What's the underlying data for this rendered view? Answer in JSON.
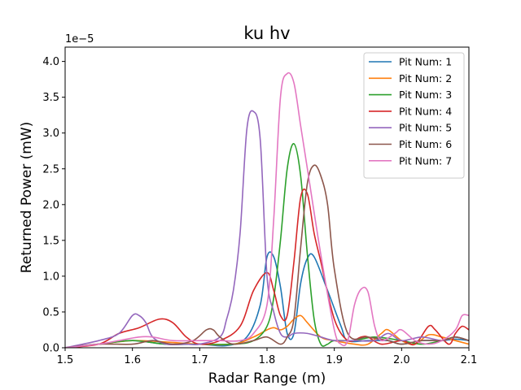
{
  "chart_data": {
    "type": "line",
    "title": "ku hv",
    "xlabel": "Radar Range (m)",
    "ylabel": "Returned Power (mW)",
    "offset_text": "1e−5",
    "xlim": [
      1.5,
      2.1
    ],
    "ylim": [
      0.0,
      4.2
    ],
    "xticks": [
      "1.5",
      "1.6",
      "1.7",
      "1.8",
      "1.9",
      "2.0",
      "2.1"
    ],
    "yticks": [
      "0.0",
      "0.5",
      "1.0",
      "1.5",
      "2.0",
      "2.5",
      "3.0",
      "3.5",
      "4.0"
    ],
    "grid": false,
    "legend_position": "top-right",
    "series": [
      {
        "name": "Pit Num: 1",
        "color": "#1f77b4",
        "x": [
          1.5,
          1.55,
          1.6,
          1.65,
          1.7,
          1.74,
          1.77,
          1.79,
          1.8,
          1.81,
          1.82,
          1.83,
          1.84,
          1.85,
          1.86,
          1.87,
          1.89,
          1.91,
          1.92,
          1.95,
          1.98,
          2.0,
          2.03,
          2.06,
          2.08,
          2.1
        ],
        "y": [
          0.0,
          0.05,
          0.1,
          0.05,
          0.05,
          0.03,
          0.15,
          0.6,
          1.27,
          1.27,
          0.85,
          0.2,
          0.2,
          0.9,
          1.25,
          1.27,
          0.8,
          0.3,
          0.1,
          0.1,
          0.1,
          0.05,
          0.1,
          0.1,
          0.12,
          0.1
        ]
      },
      {
        "name": "Pit Num: 2",
        "color": "#ff7f0e",
        "x": [
          1.5,
          1.55,
          1.6,
          1.65,
          1.7,
          1.75,
          1.78,
          1.8,
          1.81,
          1.82,
          1.83,
          1.84,
          1.85,
          1.86,
          1.88,
          1.9,
          1.93,
          1.95,
          1.97,
          1.98,
          2.0,
          2.02,
          2.04,
          2.06,
          2.08,
          2.1
        ],
        "y": [
          0.0,
          0.05,
          0.1,
          0.08,
          0.05,
          0.05,
          0.15,
          0.25,
          0.28,
          0.25,
          0.3,
          0.4,
          0.45,
          0.35,
          0.15,
          0.1,
          0.05,
          0.05,
          0.2,
          0.25,
          0.1,
          0.05,
          0.18,
          0.15,
          0.1,
          0.05
        ]
      },
      {
        "name": "Pit Num: 3",
        "color": "#2ca02c",
        "x": [
          1.5,
          1.55,
          1.6,
          1.65,
          1.7,
          1.75,
          1.78,
          1.8,
          1.81,
          1.82,
          1.83,
          1.84,
          1.85,
          1.86,
          1.87,
          1.88,
          1.89,
          1.9,
          1.93,
          1.96,
          2.0,
          2.03,
          2.06,
          2.08,
          2.1
        ],
        "y": [
          0.0,
          0.05,
          0.1,
          0.05,
          0.05,
          0.05,
          0.1,
          0.3,
          0.7,
          1.5,
          2.5,
          2.85,
          2.4,
          1.3,
          0.4,
          0.05,
          0.05,
          0.1,
          0.1,
          0.15,
          0.1,
          0.05,
          0.1,
          0.15,
          0.1
        ]
      },
      {
        "name": "Pit Num: 4",
        "color": "#d62728",
        "x": [
          1.5,
          1.55,
          1.58,
          1.61,
          1.64,
          1.66,
          1.68,
          1.7,
          1.73,
          1.76,
          1.78,
          1.8,
          1.81,
          1.82,
          1.83,
          1.84,
          1.85,
          1.86,
          1.87,
          1.88,
          1.9,
          1.92,
          1.94,
          1.95,
          1.97,
          2.0,
          2.02,
          2.04,
          2.05,
          2.07,
          2.08,
          2.09,
          2.1
        ],
        "y": [
          0.0,
          0.05,
          0.2,
          0.28,
          0.4,
          0.35,
          0.15,
          0.05,
          0.1,
          0.3,
          0.8,
          1.05,
          0.8,
          0.45,
          0.45,
          1.2,
          2.1,
          2.15,
          1.6,
          1.2,
          0.4,
          0.1,
          0.15,
          0.15,
          0.05,
          0.1,
          0.05,
          0.3,
          0.25,
          0.05,
          0.2,
          0.3,
          0.25
        ]
      },
      {
        "name": "Pit Num: 5",
        "color": "#9467bd",
        "x": [
          1.5,
          1.55,
          1.58,
          1.6,
          1.61,
          1.62,
          1.63,
          1.65,
          1.68,
          1.7,
          1.73,
          1.74,
          1.75,
          1.76,
          1.77,
          1.78,
          1.79,
          1.8,
          1.81,
          1.82,
          1.83,
          1.84,
          1.86,
          1.88,
          1.9,
          1.93,
          1.96,
          1.98,
          2.0,
          2.03,
          2.06,
          2.08,
          2.1
        ],
        "y": [
          0.0,
          0.1,
          0.2,
          0.45,
          0.45,
          0.35,
          0.15,
          0.05,
          0.05,
          0.05,
          0.15,
          0.4,
          0.8,
          1.6,
          3.05,
          3.3,
          2.9,
          1.0,
          0.5,
          0.2,
          0.15,
          0.2,
          0.2,
          0.15,
          0.1,
          0.1,
          0.1,
          0.2,
          0.1,
          0.15,
          0.1,
          0.15,
          0.1
        ]
      },
      {
        "name": "Pit Num: 6",
        "color": "#8c564b",
        "x": [
          1.5,
          1.55,
          1.6,
          1.63,
          1.66,
          1.69,
          1.71,
          1.72,
          1.73,
          1.75,
          1.78,
          1.8,
          1.82,
          1.83,
          1.84,
          1.85,
          1.86,
          1.87,
          1.88,
          1.89,
          1.9,
          1.92,
          1.95,
          1.98,
          2.0,
          2.03,
          2.06,
          2.08,
          2.1
        ],
        "y": [
          0.0,
          0.05,
          0.05,
          0.1,
          0.05,
          0.1,
          0.25,
          0.25,
          0.15,
          0.05,
          0.1,
          0.15,
          0.05,
          0.15,
          0.4,
          1.4,
          2.3,
          2.55,
          2.4,
          2.0,
          1.1,
          0.2,
          0.15,
          0.1,
          0.05,
          0.1,
          0.1,
          0.15,
          0.1
        ]
      },
      {
        "name": "Pit Num: 7",
        "color": "#e377c2",
        "x": [
          1.5,
          1.55,
          1.58,
          1.61,
          1.63,
          1.66,
          1.7,
          1.73,
          1.76,
          1.78,
          1.8,
          1.81,
          1.82,
          1.83,
          1.84,
          1.85,
          1.86,
          1.88,
          1.9,
          1.91,
          1.92,
          1.93,
          1.94,
          1.95,
          1.96,
          1.97,
          1.99,
          2.0,
          2.02,
          2.04,
          2.06,
          2.08,
          2.09,
          2.1
        ],
        "y": [
          0.0,
          0.05,
          0.1,
          0.15,
          0.15,
          0.1,
          0.1,
          0.1,
          0.1,
          0.2,
          0.6,
          1.8,
          3.5,
          3.83,
          3.7,
          3.1,
          2.5,
          1.3,
          0.25,
          0.05,
          0.1,
          0.6,
          0.82,
          0.78,
          0.3,
          0.1,
          0.2,
          0.25,
          0.1,
          0.05,
          0.1,
          0.25,
          0.45,
          0.45
        ]
      }
    ]
  }
}
